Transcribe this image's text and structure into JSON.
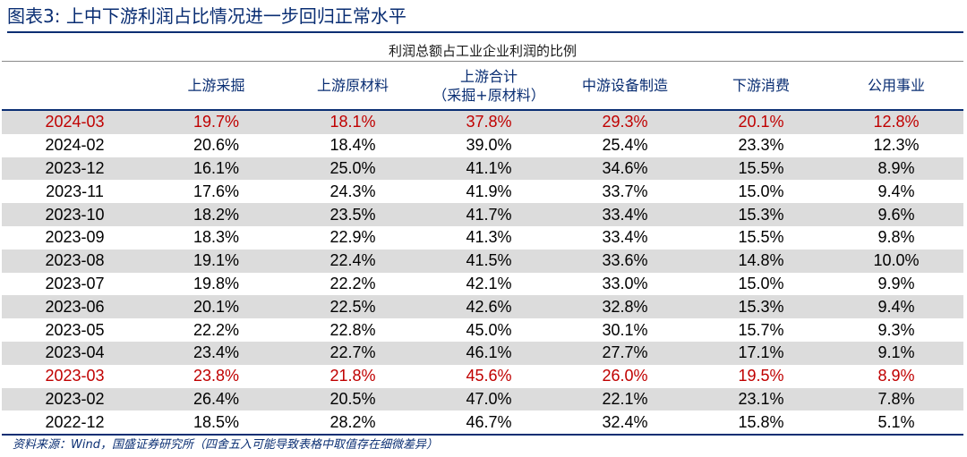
{
  "title": "图表3:  上中下游利润占比情况进一步回归正常水平",
  "table": {
    "caption": "利润总额占工业企业利润的比例",
    "columns": [
      {
        "label": "",
        "sub": ""
      },
      {
        "label": "上游采掘",
        "sub": ""
      },
      {
        "label": "上游原材料",
        "sub": ""
      },
      {
        "label": "上游合计",
        "sub": "（采掘+原材料）"
      },
      {
        "label": "中游设备制造",
        "sub": ""
      },
      {
        "label": "下游消费",
        "sub": ""
      },
      {
        "label": "公用事业",
        "sub": ""
      }
    ],
    "rows": [
      {
        "cells": [
          "2024-03",
          "19.7%",
          "18.1%",
          "37.8%",
          "29.3%",
          "20.1%",
          "12.8%"
        ],
        "shaded": true,
        "highlight": true
      },
      {
        "cells": [
          "2024-02",
          "20.6%",
          "18.4%",
          "39.0%",
          "25.4%",
          "23.3%",
          "12.3%"
        ],
        "shaded": false,
        "highlight": false
      },
      {
        "cells": [
          "2023-12",
          "16.1%",
          "25.0%",
          "41.1%",
          "34.6%",
          "15.5%",
          "8.9%"
        ],
        "shaded": true,
        "highlight": false
      },
      {
        "cells": [
          "2023-11",
          "17.6%",
          "24.3%",
          "41.9%",
          "33.7%",
          "15.0%",
          "9.4%"
        ],
        "shaded": false,
        "highlight": false
      },
      {
        "cells": [
          "2023-10",
          "18.2%",
          "23.5%",
          "41.7%",
          "33.4%",
          "15.3%",
          "9.6%"
        ],
        "shaded": true,
        "highlight": false
      },
      {
        "cells": [
          "2023-09",
          "18.3%",
          "22.9%",
          "41.3%",
          "33.4%",
          "15.5%",
          "9.8%"
        ],
        "shaded": false,
        "highlight": false
      },
      {
        "cells": [
          "2023-08",
          "19.1%",
          "22.4%",
          "41.5%",
          "33.6%",
          "14.8%",
          "10.0%"
        ],
        "shaded": true,
        "highlight": false
      },
      {
        "cells": [
          "2023-07",
          "19.8%",
          "22.2%",
          "42.1%",
          "33.0%",
          "15.0%",
          "9.9%"
        ],
        "shaded": false,
        "highlight": false
      },
      {
        "cells": [
          "2023-06",
          "20.1%",
          "22.5%",
          "42.6%",
          "32.8%",
          "15.3%",
          "9.4%"
        ],
        "shaded": true,
        "highlight": false
      },
      {
        "cells": [
          "2023-05",
          "22.2%",
          "22.8%",
          "45.0%",
          "30.1%",
          "15.7%",
          "9.3%"
        ],
        "shaded": false,
        "highlight": false
      },
      {
        "cells": [
          "2023-04",
          "23.4%",
          "22.7%",
          "46.1%",
          "27.7%",
          "17.1%",
          "9.1%"
        ],
        "shaded": true,
        "highlight": false
      },
      {
        "cells": [
          "2023-03",
          "23.8%",
          "21.8%",
          "45.6%",
          "26.0%",
          "19.5%",
          "8.9%"
        ],
        "shaded": false,
        "highlight": true
      },
      {
        "cells": [
          "2023-02",
          "26.4%",
          "20.5%",
          "47.0%",
          "22.1%",
          "23.1%",
          "7.8%"
        ],
        "shaded": true,
        "highlight": false
      },
      {
        "cells": [
          "2022-12",
          "18.5%",
          "28.2%",
          "46.7%",
          "32.4%",
          "15.8%",
          "5.1%"
        ],
        "shaded": false,
        "highlight": false
      }
    ]
  },
  "footer": "资料来源：Wind，国盛证券研究所（四舍五入可能导致表格中取值存在细微差异）",
  "colors": {
    "accent": "#0a2e73",
    "highlight": "#c00000",
    "shade": "#dcdcdc"
  }
}
